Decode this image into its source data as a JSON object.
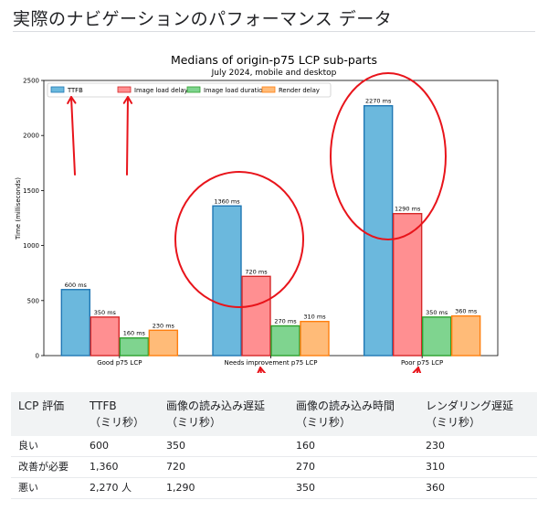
{
  "page": {
    "heading": "実際のナビゲーションのパフォーマンス データ"
  },
  "chart_data": {
    "type": "bar",
    "title": "Medians of origin-p75 LCP sub-parts",
    "subtitle": "July 2024, mobile and desktop",
    "ylabel": "Time (milliseconds)",
    "xlabel": "",
    "ylim": [
      0,
      2500
    ],
    "yticks": [
      0,
      500,
      1000,
      1500,
      2000,
      2500
    ],
    "grid": false,
    "legend_position": "top-left",
    "categories": [
      "Good p75 LCP",
      "Needs improvement p75 LCP",
      "Poor p75 LCP"
    ],
    "series": [
      {
        "name": "TTFB",
        "values": [
          600,
          1360,
          2270
        ],
        "labels": [
          "600 ms",
          "1360 ms",
          "2270 ms"
        ],
        "color": "#6bb8dd",
        "edge": "#1f77b4"
      },
      {
        "name": "Image load delay",
        "values": [
          350,
          720,
          1290
        ],
        "labels": [
          "350 ms",
          "720 ms",
          "1290 ms"
        ],
        "color": "#ff8f91",
        "edge": "#d62728"
      },
      {
        "name": "Image load duration",
        "values": [
          160,
          270,
          350
        ],
        "labels": [
          "160 ms",
          "270 ms",
          "350 ms"
        ],
        "color": "#7fd48f",
        "edge": "#2ca02c"
      },
      {
        "name": "Render delay",
        "values": [
          230,
          310,
          360
        ],
        "labels": [
          "230 ms",
          "310 ms",
          "360 ms"
        ],
        "color": "#ffbb78",
        "edge": "#ff7f0e"
      }
    ]
  },
  "annotation_color": "#e8141b",
  "table": {
    "headers": [
      {
        "main": "LCP 評価",
        "sub": ""
      },
      {
        "main": "TTFB",
        "sub": "（ミリ秒）"
      },
      {
        "main": "画像の読み込み遅延",
        "sub": "（ミリ秒）"
      },
      {
        "main": "画像の読み込み時間",
        "sub": "（ミリ秒）"
      },
      {
        "main": "レンダリング遅延",
        "sub": "（ミリ秒）"
      }
    ],
    "rows": [
      [
        "良い",
        "600",
        "350",
        "160",
        "230"
      ],
      [
        "改善が必要",
        "1,360",
        "720",
        "270",
        "310"
      ],
      [
        "悪い",
        "2,270 人",
        "1,290",
        "350",
        "360"
      ]
    ]
  }
}
